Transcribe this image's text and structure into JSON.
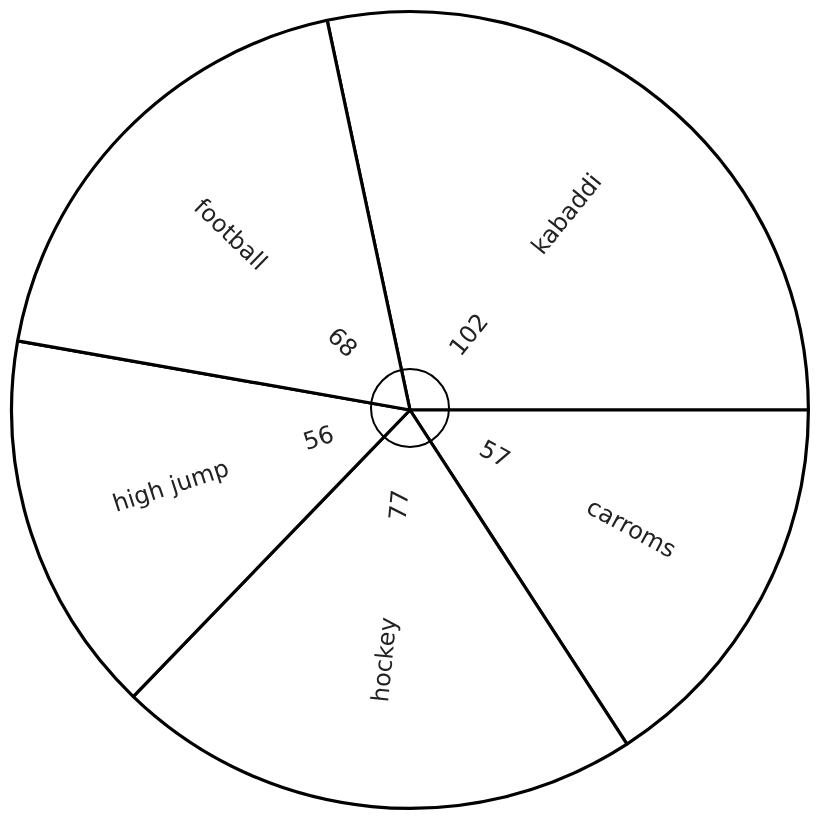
{
  "chart_data": {
    "type": "pie",
    "categories": [
      "kabaddi",
      "carroms",
      "hockey",
      "high jump",
      "football"
    ],
    "values": [
      102,
      57,
      77,
      56,
      68
    ],
    "colors": [
      "#ffffff",
      "#ffffff",
      "#ffffff",
      "#ffffff",
      "#ffffff"
    ],
    "data_labels": true,
    "legend": false
  }
}
